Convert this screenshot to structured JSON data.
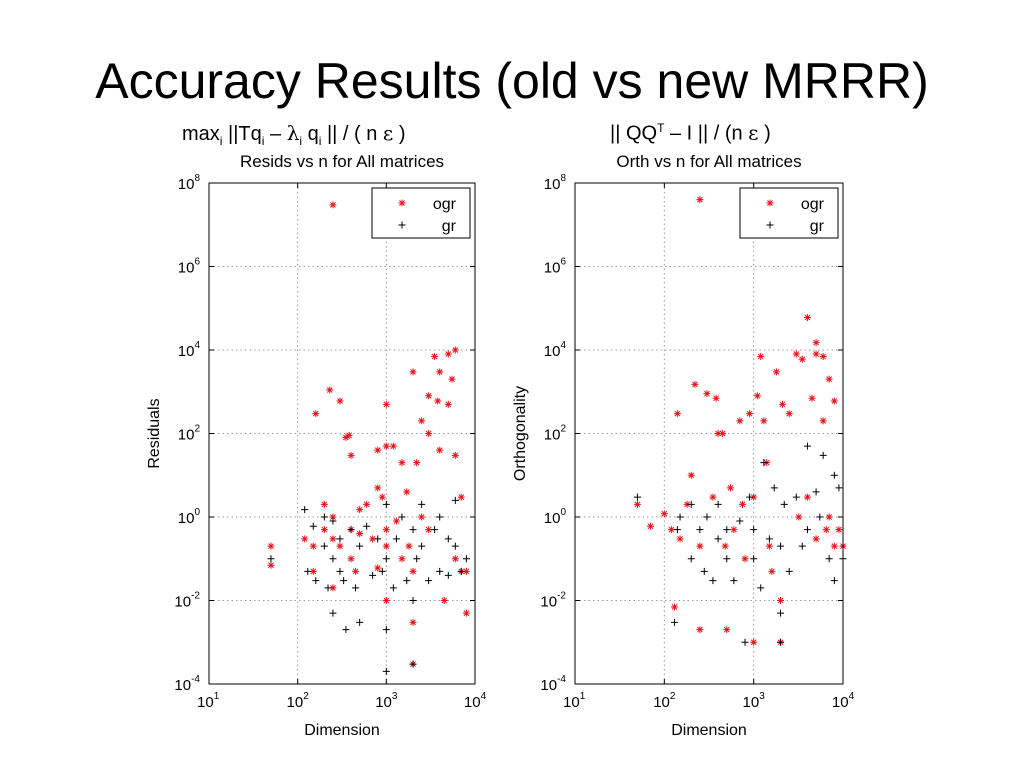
{
  "slide": {
    "title": "Accuracy Results (old vs new MRRR)"
  },
  "captions": {
    "left": {
      "max": "max",
      "i1": "i",
      "norm_open": " ||Tq",
      "i2": "i",
      "dash": " – ",
      "lambda": "λ",
      "i3": "i",
      "q": " q",
      "i4": "i",
      "rest": " || / ( n ",
      "eps": "ε",
      "close": " )"
    },
    "right": {
      "norm_open": "|| QQ",
      "T": "T",
      "rest": " – I || / (n ",
      "eps": "ε",
      "close": " )"
    }
  },
  "colors": {
    "ogr": "#e8141b",
    "gr": "#000000",
    "grid": "#9a9a9a"
  },
  "chart_data": [
    {
      "type": "scatter",
      "title": "Resids vs n for All matrices",
      "xlabel": "Dimension",
      "ylabel": "Residuals",
      "xscale": "log",
      "yscale": "log",
      "xlim_exp": [
        1,
        4
      ],
      "ylim_exp": [
        -4,
        8
      ],
      "x_ticks": [
        "10",
        "10",
        "10",
        "10"
      ],
      "x_tick_exp": [
        "1",
        "2",
        "3",
        "4"
      ],
      "y_ticks": [
        "10",
        "10",
        "10",
        "10",
        "10",
        "10",
        "10"
      ],
      "y_tick_exp": [
        "-4",
        "-2",
        "0",
        "2",
        "4",
        "6",
        "8"
      ],
      "grid": true,
      "legend": "top-right",
      "series": [
        {
          "name": "ogr",
          "marker": "*",
          "points": [
            [
              50,
              0.2
            ],
            [
              50,
              0.07
            ],
            [
              120,
              0.3
            ],
            [
              150,
              0.2
            ],
            [
              150,
              0.05
            ],
            [
              160,
              300
            ],
            [
              200,
              0.5
            ],
            [
              200,
              2
            ],
            [
              230,
              1100
            ],
            [
              250,
              30000000.0
            ],
            [
              250,
              1
            ],
            [
              250,
              0.3
            ],
            [
              250,
              0.02
            ],
            [
              300,
              600
            ],
            [
              300,
              0.2
            ],
            [
              350,
              80
            ],
            [
              380,
              90
            ],
            [
              400,
              0.5
            ],
            [
              400,
              0.1
            ],
            [
              400,
              30
            ],
            [
              450,
              0.05
            ],
            [
              500,
              0.4
            ],
            [
              500,
              1.5
            ],
            [
              600,
              2
            ],
            [
              700,
              0.3
            ],
            [
              800,
              40
            ],
            [
              800,
              5
            ],
            [
              800,
              0.06
            ],
            [
              900,
              3
            ],
            [
              1000,
              500
            ],
            [
              1000,
              50
            ],
            [
              1000,
              0.5
            ],
            [
              1000,
              0.2
            ],
            [
              1000,
              0.01
            ],
            [
              1200,
              50
            ],
            [
              1300,
              0.8
            ],
            [
              1500,
              20
            ],
            [
              1500,
              0.1
            ],
            [
              1700,
              4
            ],
            [
              1800,
              0.2
            ],
            [
              2000,
              3000
            ],
            [
              2000,
              0.003
            ],
            [
              2000,
              0.0003
            ],
            [
              2000,
              0.05
            ],
            [
              2200,
              20
            ],
            [
              2500,
              200
            ],
            [
              2500,
              1
            ],
            [
              3000,
              800
            ],
            [
              3000,
              100
            ],
            [
              3000,
              0.5
            ],
            [
              3500,
              7000
            ],
            [
              3800,
              600
            ],
            [
              4000,
              40
            ],
            [
              4000,
              3000
            ],
            [
              4500,
              0.01
            ],
            [
              5000,
              8000
            ],
            [
              5000,
              500
            ],
            [
              5500,
              2000
            ],
            [
              6000,
              10000
            ],
            [
              6000,
              30
            ],
            [
              6000,
              0.1
            ],
            [
              7000,
              3
            ],
            [
              7000,
              0.05
            ],
            [
              8000,
              0.05
            ],
            [
              8000,
              0.005
            ]
          ]
        },
        {
          "name": "gr",
          "marker": "+",
          "points": [
            [
              50,
              0.1
            ],
            [
              120,
              1.5
            ],
            [
              130,
              0.05
            ],
            [
              150,
              0.6
            ],
            [
              160,
              0.03
            ],
            [
              200,
              1
            ],
            [
              200,
              0.2
            ],
            [
              220,
              0.02
            ],
            [
              250,
              0.8
            ],
            [
              250,
              0.1
            ],
            [
              250,
              0.005
            ],
            [
              300,
              0.05
            ],
            [
              300,
              0.3
            ],
            [
              330,
              0.03
            ],
            [
              350,
              0.002
            ],
            [
              400,
              0.5
            ],
            [
              450,
              0.02
            ],
            [
              500,
              0.2
            ],
            [
              500,
              0.003
            ],
            [
              600,
              0.6
            ],
            [
              700,
              0.04
            ],
            [
              800,
              0.3
            ],
            [
              900,
              0.05
            ],
            [
              1000,
              2
            ],
            [
              1000,
              0.1
            ],
            [
              1000,
              0.002
            ],
            [
              1000,
              0.0002
            ],
            [
              1200,
              0.02
            ],
            [
              1300,
              0.3
            ],
            [
              1500,
              1
            ],
            [
              1700,
              0.03
            ],
            [
              2000,
              0.5
            ],
            [
              2000,
              0.01
            ],
            [
              2000,
              0.0003
            ],
            [
              2200,
              0.1
            ],
            [
              2500,
              2
            ],
            [
              2500,
              0.2
            ],
            [
              3000,
              0.03
            ],
            [
              3500,
              0.5
            ],
            [
              4000,
              0.05
            ],
            [
              4000,
              1
            ],
            [
              5000,
              0.3
            ],
            [
              5000,
              0.04
            ],
            [
              6000,
              2.5
            ],
            [
              6000,
              0.2
            ],
            [
              7000,
              0.05
            ],
            [
              8000,
              0.1
            ]
          ]
        }
      ]
    },
    {
      "type": "scatter",
      "title": "Orth vs n for All matrices",
      "xlabel": "Dimension",
      "ylabel": "Orthogonality",
      "xscale": "log",
      "yscale": "log",
      "xlim_exp": [
        1,
        4
      ],
      "ylim_exp": [
        -4,
        8
      ],
      "x_ticks": [
        "10",
        "10",
        "10",
        "10"
      ],
      "x_tick_exp": [
        "1",
        "2",
        "3",
        "4"
      ],
      "y_ticks": [
        "10",
        "10",
        "10",
        "10",
        "10",
        "10",
        "10"
      ],
      "y_tick_exp": [
        "-4",
        "-2",
        "0",
        "2",
        "4",
        "6",
        "8"
      ],
      "grid": true,
      "legend": "top-right",
      "series": [
        {
          "name": "ogr",
          "marker": "*",
          "points": [
            [
              50,
              2
            ],
            [
              70,
              0.6
            ],
            [
              100,
              1.2
            ],
            [
              120,
              0.5
            ],
            [
              130,
              0.007
            ],
            [
              140,
              300
            ],
            [
              150,
              0.3
            ],
            [
              180,
              2
            ],
            [
              200,
              10
            ],
            [
              220,
              1500
            ],
            [
              250,
              40000000.0
            ],
            [
              250,
              0.002
            ],
            [
              250,
              0.2
            ],
            [
              300,
              900
            ],
            [
              350,
              3
            ],
            [
              380,
              700
            ],
            [
              400,
              100
            ],
            [
              450,
              100
            ],
            [
              480,
              0.2
            ],
            [
              500,
              0.002
            ],
            [
              550,
              5
            ],
            [
              600,
              0.5
            ],
            [
              700,
              200
            ],
            [
              750,
              2
            ],
            [
              800,
              0.1
            ],
            [
              900,
              300
            ],
            [
              1000,
              3
            ],
            [
              1000,
              0.001
            ],
            [
              1100,
              800
            ],
            [
              1200,
              7000
            ],
            [
              1300,
              200
            ],
            [
              1400,
              20
            ],
            [
              1500,
              0.2
            ],
            [
              1600,
              0.05
            ],
            [
              1800,
              3000
            ],
            [
              2000,
              0.01
            ],
            [
              2000,
              0.001
            ],
            [
              2100,
              500
            ],
            [
              2500,
              300
            ],
            [
              3000,
              8000
            ],
            [
              3200,
              1
            ],
            [
              3500,
              6000
            ],
            [
              4000,
              60000
            ],
            [
              4000,
              3
            ],
            [
              4500,
              700
            ],
            [
              5000,
              15000
            ],
            [
              5000,
              8000
            ],
            [
              5000,
              0.3
            ],
            [
              6000,
              7000
            ],
            [
              6000,
              200
            ],
            [
              6500,
              0.5
            ],
            [
              7000,
              1
            ],
            [
              7000,
              2000
            ],
            [
              8000,
              600
            ],
            [
              8000,
              0.2
            ],
            [
              9000,
              0.5
            ],
            [
              10000,
              0.2
            ]
          ]
        },
        {
          "name": "gr",
          "marker": "+",
          "points": [
            [
              50,
              3
            ],
            [
              130,
              0.003
            ],
            [
              140,
              0.5
            ],
            [
              150,
              1
            ],
            [
              200,
              0.1
            ],
            [
              200,
              2
            ],
            [
              250,
              0.5
            ],
            [
              280,
              0.05
            ],
            [
              300,
              1
            ],
            [
              350,
              0.03
            ],
            [
              400,
              0.3
            ],
            [
              400,
              2
            ],
            [
              500,
              0.1
            ],
            [
              500,
              0.5
            ],
            [
              600,
              0.03
            ],
            [
              700,
              0.8
            ],
            [
              800,
              0.001
            ],
            [
              900,
              3
            ],
            [
              1000,
              0.1
            ],
            [
              1000,
              0.5
            ],
            [
              1200,
              0.02
            ],
            [
              1300,
              20
            ],
            [
              1500,
              0.3
            ],
            [
              1700,
              5
            ],
            [
              2000,
              0.2
            ],
            [
              2000,
              0.001
            ],
            [
              2000,
              0.005
            ],
            [
              2200,
              2
            ],
            [
              2500,
              0.05
            ],
            [
              3000,
              3
            ],
            [
              3500,
              0.2
            ],
            [
              4000,
              50
            ],
            [
              4000,
              0.5
            ],
            [
              5000,
              4
            ],
            [
              5500,
              1
            ],
            [
              6000,
              30
            ],
            [
              7000,
              0.1
            ],
            [
              8000,
              10
            ],
            [
              8000,
              0.03
            ],
            [
              9000,
              5
            ],
            [
              10000,
              0.1
            ]
          ]
        }
      ]
    }
  ]
}
